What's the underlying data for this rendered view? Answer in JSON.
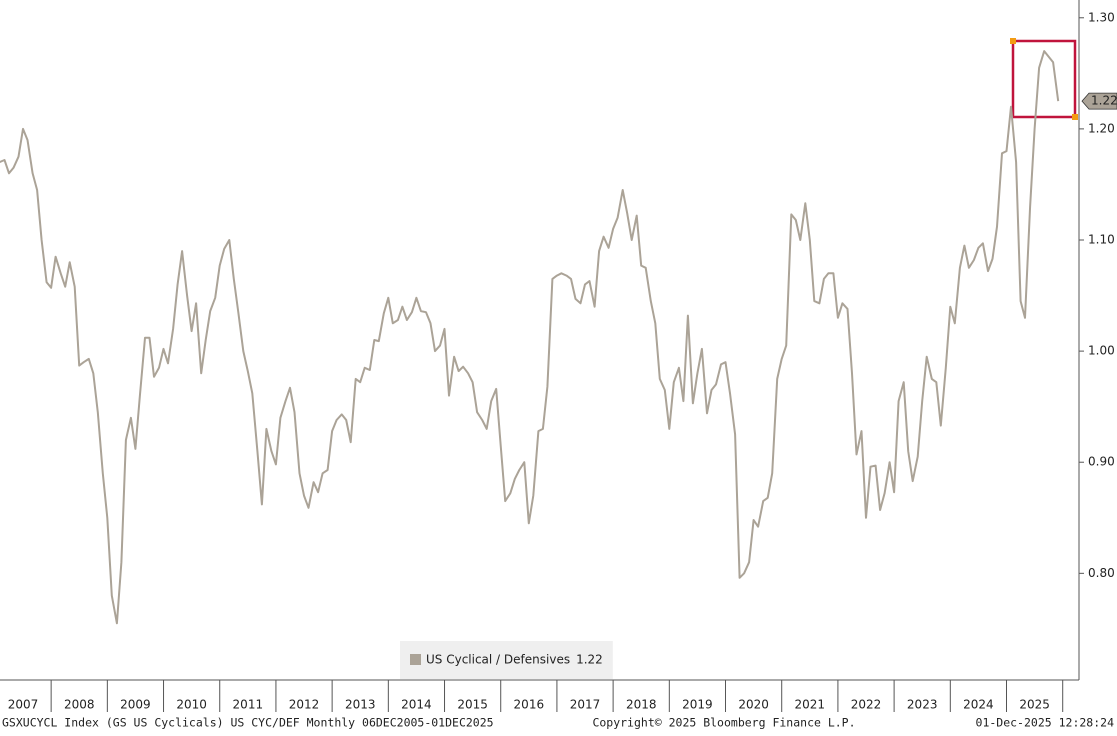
{
  "chart_data": {
    "type": "line",
    "series": [
      {
        "name": "US Cyclical / Defensives",
        "color": "#aba397",
        "values": [
          1.17,
          1.172,
          1.16,
          1.165,
          1.175,
          1.2,
          1.19,
          1.16,
          1.145,
          1.1,
          1.062,
          1.057,
          1.085,
          1.07,
          1.058,
          1.08,
          1.058,
          0.987,
          0.99,
          0.993,
          0.98,
          0.945,
          0.89,
          0.85,
          0.78,
          0.755,
          0.81,
          0.92,
          0.94,
          0.912,
          0.96,
          1.012,
          1.012,
          0.977,
          0.985,
          1.002,
          0.989,
          1.02,
          1.06,
          1.09,
          1.05,
          1.018,
          1.043,
          0.98,
          1.01,
          1.036,
          1.048,
          1.077,
          1.092,
          1.1,
          1.065,
          1.035,
          1.0,
          0.982,
          0.962,
          0.91,
          0.862,
          0.93,
          0.91,
          0.898,
          0.94,
          0.955,
          0.967,
          0.945,
          0.89,
          0.87,
          0.859,
          0.882,
          0.873,
          0.89,
          0.893,
          0.928,
          0.938,
          0.943,
          0.938,
          0.918,
          0.975,
          0.972,
          0.985,
          0.983,
          1.01,
          1.009,
          1.034,
          1.048,
          1.025,
          1.028,
          1.04,
          1.028,
          1.035,
          1.048,
          1.036,
          1.035,
          1.025,
          1.0,
          1.005,
          1.02,
          0.96,
          0.995,
          0.982,
          0.986,
          0.98,
          0.972,
          0.945,
          0.938,
          0.93,
          0.955,
          0.966,
          0.915,
          0.865,
          0.872,
          0.885,
          0.893,
          0.9,
          0.845,
          0.87,
          0.928,
          0.93,
          0.968,
          1.065,
          1.068,
          1.07,
          1.068,
          1.065,
          1.047,
          1.043,
          1.06,
          1.063,
          1.04,
          1.09,
          1.103,
          1.093,
          1.11,
          1.12,
          1.145,
          1.124,
          1.1,
          1.122,
          1.077,
          1.075,
          1.045,
          1.025,
          0.975,
          0.965,
          0.93,
          0.972,
          0.985,
          0.955,
          1.032,
          0.953,
          0.98,
          1.002,
          0.944,
          0.965,
          0.97,
          0.988,
          0.99,
          0.962,
          0.925,
          0.796,
          0.8,
          0.81,
          0.848,
          0.842,
          0.865,
          0.868,
          0.89,
          0.975,
          0.993,
          1.005,
          1.123,
          1.118,
          1.1,
          1.133,
          1.1,
          1.045,
          1.043,
          1.065,
          1.07,
          1.07,
          1.03,
          1.043,
          1.038,
          0.98,
          0.907,
          0.928,
          0.85,
          0.896,
          0.897,
          0.857,
          0.872,
          0.9,
          0.873,
          0.955,
          0.972,
          0.91,
          0.883,
          0.905,
          0.955,
          0.995,
          0.975,
          0.972,
          0.933,
          0.985,
          1.04,
          1.025,
          1.075,
          1.095,
          1.075,
          1.082,
          1.093,
          1.097,
          1.072,
          1.083,
          1.112,
          1.178,
          1.18,
          1.22,
          1.17,
          1.045,
          1.03,
          1.13,
          1.2,
          1.255,
          1.27,
          1.265,
          1.26,
          1.225
        ]
      }
    ],
    "x": [
      2007.08,
      2007.17,
      2007.25,
      2007.33,
      2007.42,
      2007.5,
      2007.58,
      2007.67,
      2007.75,
      2007.83,
      2007.92,
      2008.0,
      2008.08,
      2008.17,
      2008.25,
      2008.33,
      2008.42,
      2008.5,
      2008.58,
      2008.67,
      2008.75,
      2008.83,
      2008.92,
      2009.0,
      2009.08,
      2009.17,
      2009.25,
      2009.33,
      2009.42,
      2009.5,
      2009.58,
      2009.67,
      2009.75,
      2009.83,
      2009.92,
      2010.0,
      2010.08,
      2010.17,
      2010.25,
      2010.33,
      2010.42,
      2010.5,
      2010.58,
      2010.67,
      2010.75,
      2010.83,
      2010.92,
      2011.0,
      2011.08,
      2011.17,
      2011.25,
      2011.33,
      2011.42,
      2011.5,
      2011.58,
      2011.67,
      2011.75,
      2011.83,
      2011.92,
      2012.0,
      2012.08,
      2012.17,
      2012.25,
      2012.33,
      2012.42,
      2012.5,
      2012.58,
      2012.67,
      2012.75,
      2012.83,
      2012.92,
      2013.0,
      2013.08,
      2013.17,
      2013.25,
      2013.33,
      2013.42,
      2013.5,
      2013.58,
      2013.67,
      2013.75,
      2013.83,
      2013.92,
      2014.0,
      2014.08,
      2014.17,
      2014.25,
      2014.33,
      2014.42,
      2014.5,
      2014.58,
      2014.67,
      2014.75,
      2014.83,
      2014.92,
      2015.0,
      2015.08,
      2015.17,
      2015.25,
      2015.33,
      2015.42,
      2015.5,
      2015.58,
      2015.67,
      2015.75,
      2015.83,
      2015.92,
      2016.0,
      2016.08,
      2016.17,
      2016.25,
      2016.33,
      2016.42,
      2016.5,
      2016.58,
      2016.67,
      2016.75,
      2016.83,
      2016.92,
      2017.0,
      2017.08,
      2017.17,
      2017.25,
      2017.33,
      2017.42,
      2017.5,
      2017.58,
      2017.67,
      2017.75,
      2017.83,
      2017.92,
      2018.0,
      2018.08,
      2018.17,
      2018.25,
      2018.33,
      2018.42,
      2018.5,
      2018.58,
      2018.67,
      2018.75,
      2018.83,
      2018.92,
      2019.0,
      2019.08,
      2019.17,
      2019.25,
      2019.33,
      2019.42,
      2019.5,
      2019.58,
      2019.67,
      2019.75,
      2019.83,
      2019.92,
      2020.0,
      2020.08,
      2020.17,
      2020.25,
      2020.33,
      2020.42,
      2020.5,
      2020.58,
      2020.67,
      2020.75,
      2020.83,
      2020.92,
      2021.0,
      2021.08,
      2021.17,
      2021.25,
      2021.33,
      2021.42,
      2021.5,
      2021.58,
      2021.67,
      2021.75,
      2021.83,
      2021.92,
      2022.0,
      2022.08,
      2022.17,
      2022.25,
      2022.33,
      2022.42,
      2022.5,
      2022.58,
      2022.67,
      2022.75,
      2022.83,
      2022.92,
      2023.0,
      2023.08,
      2023.17,
      2023.25,
      2023.33,
      2023.42,
      2023.5,
      2023.58,
      2023.67,
      2023.75,
      2023.83,
      2023.92,
      2024.0,
      2024.08,
      2024.17,
      2024.25,
      2024.33,
      2024.42,
      2024.5,
      2024.58,
      2024.67,
      2024.75,
      2024.83,
      2024.92,
      2025.0,
      2025.08,
      2025.17,
      2025.25,
      2025.33,
      2025.42,
      2025.5,
      2025.58,
      2025.67,
      2025.75,
      2025.83,
      2025.92
    ],
    "xlim": [
      2007.09,
      2026.29
    ],
    "xticks": [
      {
        "value": 2007.5,
        "label": "2007"
      },
      {
        "value": 2008.5,
        "label": "2008"
      },
      {
        "value": 2009.5,
        "label": "2009"
      },
      {
        "value": 2010.5,
        "label": "2010"
      },
      {
        "value": 2011.5,
        "label": "2011"
      },
      {
        "value": 2012.5,
        "label": "2012"
      },
      {
        "value": 2013.5,
        "label": "2013"
      },
      {
        "value": 2014.5,
        "label": "2014"
      },
      {
        "value": 2015.5,
        "label": "2015"
      },
      {
        "value": 2016.5,
        "label": "2016"
      },
      {
        "value": 2017.5,
        "label": "2017"
      },
      {
        "value": 2018.5,
        "label": "2018"
      },
      {
        "value": 2019.5,
        "label": "2019"
      },
      {
        "value": 2020.5,
        "label": "2020"
      },
      {
        "value": 2021.5,
        "label": "2021"
      },
      {
        "value": 2022.5,
        "label": "2022"
      },
      {
        "value": 2023.5,
        "label": "2023"
      },
      {
        "value": 2024.5,
        "label": "2024"
      },
      {
        "value": 2025.5,
        "label": "2025"
      }
    ],
    "ylim": [
      0.704,
      1.316
    ],
    "yticks": [
      {
        "value": 0.8,
        "label": "0.80"
      },
      {
        "value": 0.9,
        "label": "0.90"
      },
      {
        "value": 1.0,
        "label": "1.00"
      },
      {
        "value": 1.1,
        "label": "1.10"
      },
      {
        "value": 1.2,
        "label": "1.20"
      },
      {
        "value": 1.3,
        "label": "1.30"
      }
    ],
    "axis_side": "right",
    "last_value_label": "1.22",
    "footer": {
      "left": "GSXUCYCL Index (GS US Cyclicals) US CYC/DEF Monthly 06DEC2005-01DEC2025",
      "center": "Copyright© 2025 Bloomberg Finance L.P.",
      "right": "01-Dec-2025 12:28:24"
    }
  }
}
